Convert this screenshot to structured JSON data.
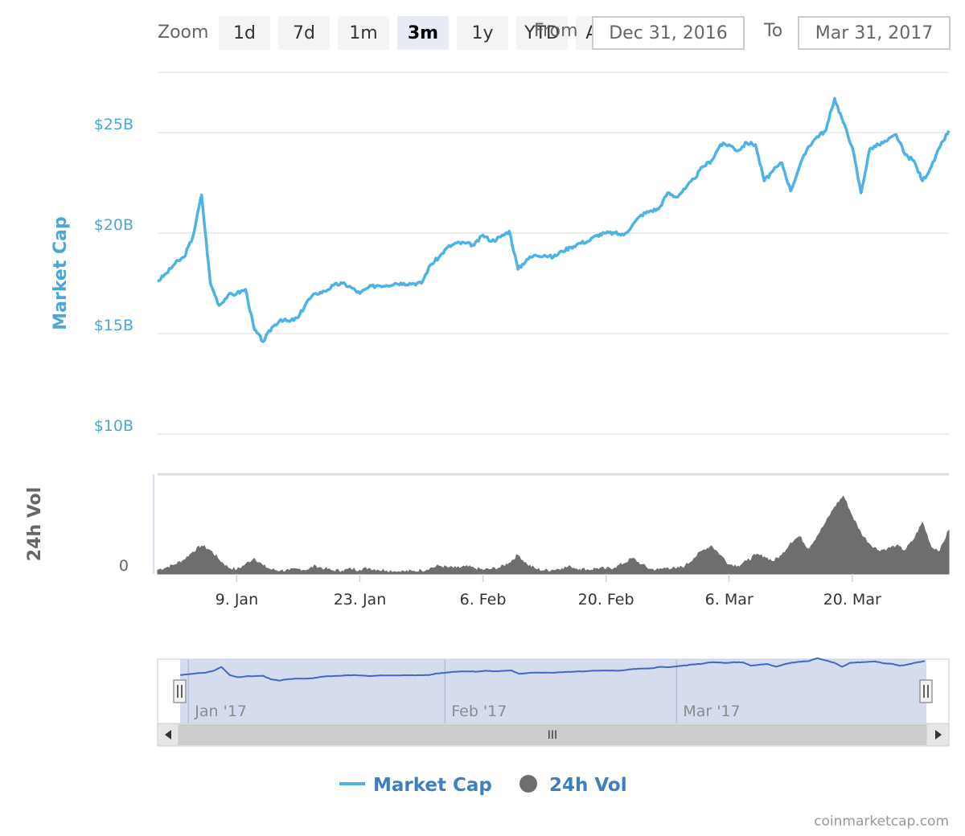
{
  "toolbar": {
    "zoom_label": "Zoom",
    "buttons": [
      "1d",
      "7d",
      "1m",
      "3m",
      "1y",
      "YTD",
      "ALL"
    ],
    "active": "3m",
    "from_label": "From",
    "from_value": "Dec 31, 2016",
    "to_label": "To",
    "to_value": "Mar 31, 2017"
  },
  "colors": {
    "market_cap": "#4db3e6",
    "volume": "#6e6e6e",
    "navigator_line": "#4169c2",
    "navigator_fill": "#ccd6eb",
    "axis_blue": "#4da6d6",
    "grid": "#e6e6e6"
  },
  "chart_data": {
    "type": "line",
    "x_range": [
      "2016-12-31",
      "2017-03-31"
    ],
    "yaxis_price": {
      "label": "Market Cap",
      "ticks": [
        "$10B",
        "$15B",
        "$20B",
        "$25B"
      ],
      "tick_values": [
        10,
        15,
        20,
        25
      ],
      "unit": "billion USD"
    },
    "yaxis_volume": {
      "label": "24h Vol",
      "ticks": [
        "0"
      ]
    },
    "x_ticks": [
      "9. Jan",
      "23. Jan",
      "6. Feb",
      "20. Feb",
      "6. Mar",
      "20. Mar"
    ],
    "x_tick_dates": [
      "2017-01-09",
      "2017-01-23",
      "2017-02-06",
      "2017-02-20",
      "2017-03-06",
      "2017-03-20"
    ],
    "series": [
      {
        "name": "Market Cap",
        "type": "line",
        "points": [
          [
            "2016-12-31",
            17.6
          ],
          [
            "2017-01-01",
            18.0
          ],
          [
            "2017-01-02",
            18.5
          ],
          [
            "2017-01-03",
            18.8
          ],
          [
            "2017-01-04",
            19.8
          ],
          [
            "2017-01-05",
            21.9
          ],
          [
            "2017-01-06",
            17.5
          ],
          [
            "2017-01-07",
            16.4
          ],
          [
            "2017-01-08",
            16.9
          ],
          [
            "2017-01-09",
            17.0
          ],
          [
            "2017-01-10",
            17.2
          ],
          [
            "2017-01-11",
            15.2
          ],
          [
            "2017-01-12",
            14.6
          ],
          [
            "2017-01-13",
            15.3
          ],
          [
            "2017-01-14",
            15.7
          ],
          [
            "2017-01-15",
            15.6
          ],
          [
            "2017-01-16",
            15.8
          ],
          [
            "2017-01-17",
            16.6
          ],
          [
            "2017-01-18",
            17.0
          ],
          [
            "2017-01-19",
            17.1
          ],
          [
            "2017-01-20",
            17.4
          ],
          [
            "2017-01-21",
            17.5
          ],
          [
            "2017-01-22",
            17.3
          ],
          [
            "2017-01-23",
            17.0
          ],
          [
            "2017-01-24",
            17.3
          ],
          [
            "2017-01-25",
            17.4
          ],
          [
            "2017-01-26",
            17.4
          ],
          [
            "2017-01-27",
            17.5
          ],
          [
            "2017-01-28",
            17.5
          ],
          [
            "2017-01-29",
            17.5
          ],
          [
            "2017-01-30",
            17.5
          ],
          [
            "2017-01-31",
            18.4
          ],
          [
            "2017-02-01",
            18.8
          ],
          [
            "2017-02-02",
            19.3
          ],
          [
            "2017-02-03",
            19.5
          ],
          [
            "2017-02-04",
            19.5
          ],
          [
            "2017-02-05",
            19.4
          ],
          [
            "2017-02-06",
            19.9
          ],
          [
            "2017-02-07",
            19.6
          ],
          [
            "2017-02-08",
            19.8
          ],
          [
            "2017-02-09",
            20.1
          ],
          [
            "2017-02-10",
            18.2
          ],
          [
            "2017-02-11",
            18.7
          ],
          [
            "2017-02-12",
            18.9
          ],
          [
            "2017-02-13",
            18.9
          ],
          [
            "2017-02-14",
            18.8
          ],
          [
            "2017-02-15",
            19.1
          ],
          [
            "2017-02-16",
            19.3
          ],
          [
            "2017-02-17",
            19.5
          ],
          [
            "2017-02-18",
            19.6
          ],
          [
            "2017-02-19",
            19.9
          ],
          [
            "2017-02-20",
            20.0
          ],
          [
            "2017-02-21",
            20.0
          ],
          [
            "2017-02-22",
            19.9
          ],
          [
            "2017-02-23",
            20.4
          ],
          [
            "2017-02-24",
            20.9
          ],
          [
            "2017-02-25",
            21.1
          ],
          [
            "2017-02-26",
            21.2
          ],
          [
            "2017-02-27",
            22.0
          ],
          [
            "2017-02-28",
            21.8
          ],
          [
            "2017-03-01",
            22.2
          ],
          [
            "2017-03-02",
            22.7
          ],
          [
            "2017-03-03",
            23.3
          ],
          [
            "2017-03-04",
            23.6
          ],
          [
            "2017-03-05",
            24.4
          ],
          [
            "2017-03-06",
            24.4
          ],
          [
            "2017-03-07",
            24.1
          ],
          [
            "2017-03-08",
            24.5
          ],
          [
            "2017-03-09",
            24.4
          ],
          [
            "2017-03-10",
            22.6
          ],
          [
            "2017-03-11",
            23.1
          ],
          [
            "2017-03-12",
            23.5
          ],
          [
            "2017-03-13",
            22.1
          ],
          [
            "2017-03-14",
            23.3
          ],
          [
            "2017-03-15",
            24.3
          ],
          [
            "2017-03-16",
            24.8
          ],
          [
            "2017-03-17",
            25.1
          ],
          [
            "2017-03-18",
            26.7
          ],
          [
            "2017-03-19",
            25.5
          ],
          [
            "2017-03-20",
            24.3
          ],
          [
            "2017-03-21",
            22.0
          ],
          [
            "2017-03-22",
            24.2
          ],
          [
            "2017-03-23",
            24.4
          ],
          [
            "2017-03-24",
            24.6
          ],
          [
            "2017-03-25",
            24.9
          ],
          [
            "2017-03-26",
            23.9
          ],
          [
            "2017-03-27",
            23.6
          ],
          [
            "2017-03-28",
            22.6
          ],
          [
            "2017-03-29",
            23.3
          ],
          [
            "2017-03-30",
            24.3
          ],
          [
            "2017-03-31",
            25.1
          ]
        ]
      },
      {
        "name": "24h Vol",
        "type": "area",
        "unit": "relative",
        "points": [
          [
            "2016-12-31",
            0.05
          ],
          [
            "2017-01-01",
            0.08
          ],
          [
            "2017-01-02",
            0.12
          ],
          [
            "2017-01-03",
            0.18
          ],
          [
            "2017-01-04",
            0.28
          ],
          [
            "2017-01-05",
            0.36
          ],
          [
            "2017-01-06",
            0.3
          ],
          [
            "2017-01-07",
            0.18
          ],
          [
            "2017-01-08",
            0.08
          ],
          [
            "2017-01-09",
            0.05
          ],
          [
            "2017-01-10",
            0.12
          ],
          [
            "2017-01-11",
            0.2
          ],
          [
            "2017-01-12",
            0.1
          ],
          [
            "2017-01-13",
            0.05
          ],
          [
            "2017-01-14",
            0.04
          ],
          [
            "2017-01-15",
            0.04
          ],
          [
            "2017-01-16",
            0.06
          ],
          [
            "2017-01-17",
            0.05
          ],
          [
            "2017-01-18",
            0.1
          ],
          [
            "2017-01-19",
            0.06
          ],
          [
            "2017-01-20",
            0.04
          ],
          [
            "2017-01-21",
            0.04
          ],
          [
            "2017-01-22",
            0.06
          ],
          [
            "2017-01-23",
            0.05
          ],
          [
            "2017-01-24",
            0.07
          ],
          [
            "2017-01-25",
            0.05
          ],
          [
            "2017-01-26",
            0.04
          ],
          [
            "2017-01-27",
            0.03
          ],
          [
            "2017-01-28",
            0.03
          ],
          [
            "2017-01-29",
            0.03
          ],
          [
            "2017-01-30",
            0.04
          ],
          [
            "2017-01-31",
            0.07
          ],
          [
            "2017-02-01",
            0.1
          ],
          [
            "2017-02-02",
            0.08
          ],
          [
            "2017-02-03",
            0.07
          ],
          [
            "2017-02-04",
            0.09
          ],
          [
            "2017-02-05",
            0.07
          ],
          [
            "2017-02-06",
            0.05
          ],
          [
            "2017-02-07",
            0.06
          ],
          [
            "2017-02-08",
            0.08
          ],
          [
            "2017-02-09",
            0.14
          ],
          [
            "2017-02-10",
            0.24
          ],
          [
            "2017-02-11",
            0.12
          ],
          [
            "2017-02-12",
            0.06
          ],
          [
            "2017-02-13",
            0.04
          ],
          [
            "2017-02-14",
            0.05
          ],
          [
            "2017-02-15",
            0.07
          ],
          [
            "2017-02-16",
            0.09
          ],
          [
            "2017-02-17",
            0.06
          ],
          [
            "2017-02-18",
            0.05
          ],
          [
            "2017-02-19",
            0.07
          ],
          [
            "2017-02-20",
            0.06
          ],
          [
            "2017-02-21",
            0.08
          ],
          [
            "2017-02-22",
            0.13
          ],
          [
            "2017-02-23",
            0.2
          ],
          [
            "2017-02-24",
            0.12
          ],
          [
            "2017-02-25",
            0.06
          ],
          [
            "2017-02-26",
            0.05
          ],
          [
            "2017-02-27",
            0.08
          ],
          [
            "2017-02-28",
            0.06
          ],
          [
            "2017-03-01",
            0.1
          ],
          [
            "2017-03-02",
            0.2
          ],
          [
            "2017-03-03",
            0.3
          ],
          [
            "2017-03-04",
            0.36
          ],
          [
            "2017-03-05",
            0.24
          ],
          [
            "2017-03-06",
            0.12
          ],
          [
            "2017-03-07",
            0.1
          ],
          [
            "2017-03-08",
            0.16
          ],
          [
            "2017-03-09",
            0.24
          ],
          [
            "2017-03-10",
            0.22
          ],
          [
            "2017-03-11",
            0.16
          ],
          [
            "2017-03-12",
            0.24
          ],
          [
            "2017-03-13",
            0.4
          ],
          [
            "2017-03-14",
            0.48
          ],
          [
            "2017-03-15",
            0.32
          ],
          [
            "2017-03-16",
            0.48
          ],
          [
            "2017-03-17",
            0.66
          ],
          [
            "2017-03-18",
            0.86
          ],
          [
            "2017-03-19",
            1.0
          ],
          [
            "2017-03-20",
            0.74
          ],
          [
            "2017-03-21",
            0.52
          ],
          [
            "2017-03-22",
            0.38
          ],
          [
            "2017-03-23",
            0.3
          ],
          [
            "2017-03-24",
            0.32
          ],
          [
            "2017-03-25",
            0.36
          ],
          [
            "2017-03-26",
            0.3
          ],
          [
            "2017-03-27",
            0.44
          ],
          [
            "2017-03-28",
            0.66
          ],
          [
            "2017-03-29",
            0.34
          ],
          [
            "2017-03-30",
            0.3
          ],
          [
            "2017-03-31",
            0.56
          ]
        ]
      }
    ],
    "navigator": {
      "labels": [
        "Jan '17",
        "Feb '17",
        "Mar '17"
      ],
      "label_dates": [
        "2017-01-01",
        "2017-02-01",
        "2017-03-01"
      ]
    },
    "legend": {
      "placement": "bottom-center",
      "items": [
        {
          "name": "Market Cap",
          "marker": "line"
        },
        {
          "name": "24h Vol",
          "marker": "circle"
        }
      ]
    },
    "grid": true
  },
  "scrollbar": {
    "grip": "III"
  },
  "credit": "coinmarketcap.com"
}
